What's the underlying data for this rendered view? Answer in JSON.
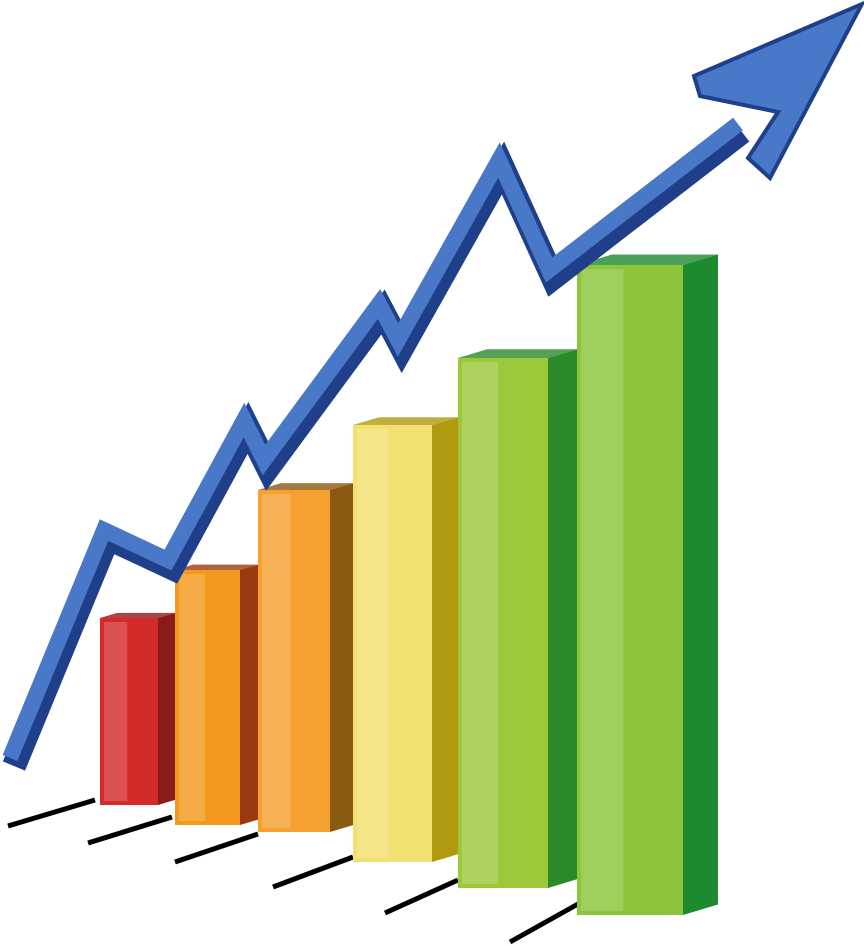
{
  "chart_data": {
    "type": "bar",
    "values": [
      187,
      255,
      342,
      437,
      530,
      650
    ],
    "colors": [
      "#d42a2a",
      "#f39a1e",
      "#f5a030",
      "#f2e070",
      "#9cc83a",
      "#8cc43a"
    ],
    "side_colors": [
      "#8b1a1a",
      "#9b3a10",
      "#8a5a10",
      "#b09a10",
      "#2a8a2a",
      "#1e8a30"
    ]
  }
}
